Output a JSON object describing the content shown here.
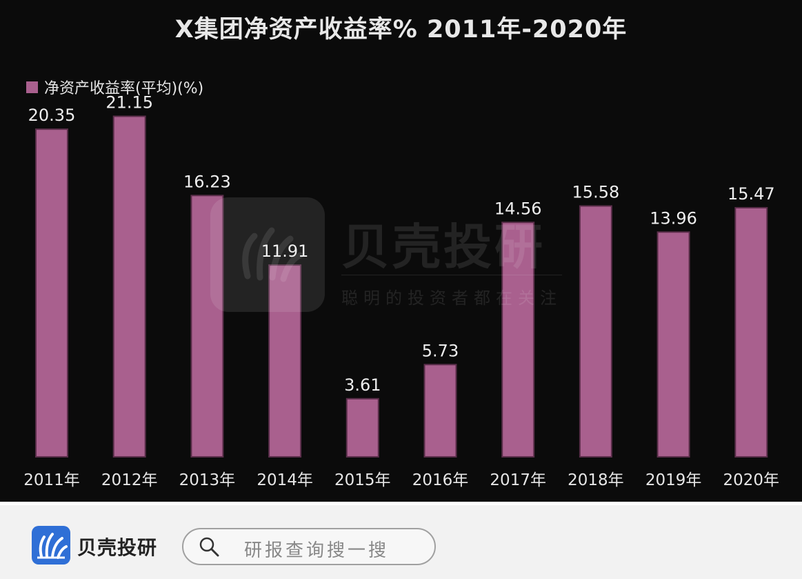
{
  "chart_data": {
    "type": "bar",
    "title": "X集团净资产收益率% 2011年-2020年",
    "categories": [
      "2011年",
      "2012年",
      "2013年",
      "2014年",
      "2015年",
      "2016年",
      "2017年",
      "2018年",
      "2019年",
      "2020年"
    ],
    "series": [
      {
        "name": "净资产收益率(平均)(%)",
        "values": [
          20.35,
          21.15,
          16.23,
          11.91,
          3.61,
          5.73,
          14.56,
          15.58,
          13.96,
          15.47
        ]
      }
    ],
    "ylim": [
      0,
      24
    ],
    "grid": false,
    "legend": "top-left",
    "bar_color": "#a9608e",
    "background": "#0b0b0b"
  },
  "watermark": {
    "brand": "贝壳投研",
    "slogan": "聪明的投资者都在关注"
  },
  "footer": {
    "brand_name": "贝壳投研",
    "search_placeholder": "研报查询搜一搜",
    "brand_color": "#2f6fd6"
  }
}
